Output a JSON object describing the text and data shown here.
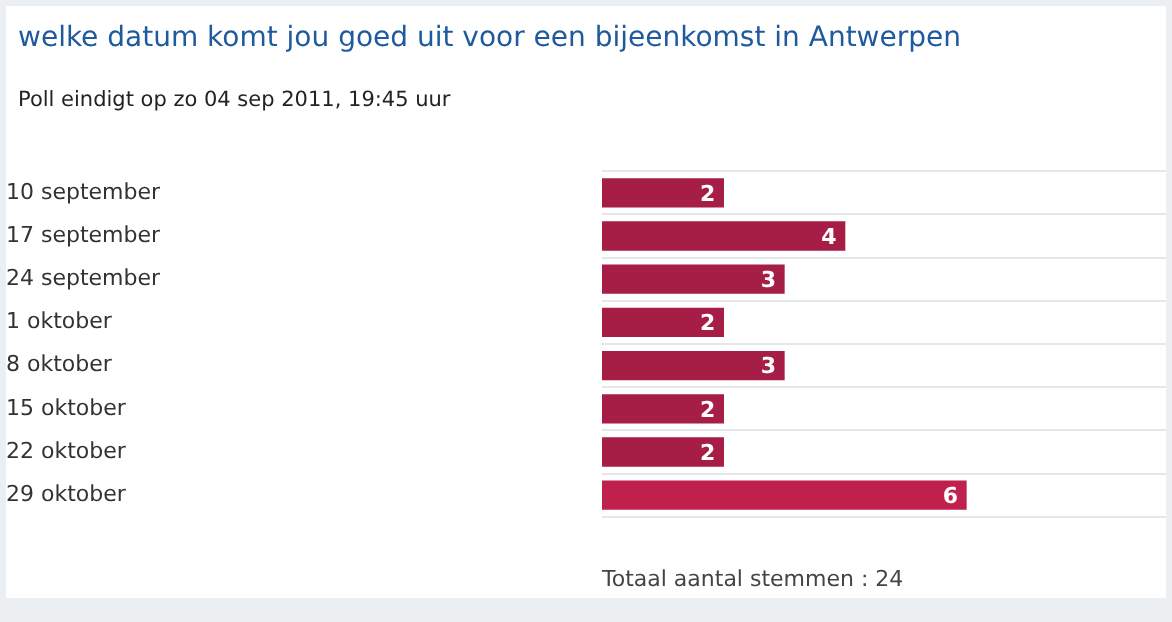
{
  "chart_data": {
    "type": "bar",
    "orientation": "horizontal",
    "title": "welke datum komt jou goed uit voor een bijeenkomst in Antwerpen",
    "subtitle": "Poll eindigt op zo 04 sep 2011, 19:45 uur",
    "categories": [
      "10 september",
      "17 september",
      "24 september",
      "1 oktober",
      "8 oktober",
      "15 oktober",
      "22 oktober",
      "29 oktober"
    ],
    "values": [
      2,
      4,
      3,
      2,
      3,
      2,
      2,
      6
    ],
    "colors": [
      "#a61e45",
      "#a61e45",
      "#a61e45",
      "#a61e45",
      "#a61e45",
      "#a61e45",
      "#a61e45",
      "#c0204c"
    ],
    "data_labels": true,
    "grid": "y",
    "legend": false,
    "tick_labels": "y",
    "annotations": [
      "Totaal aantal stemmen : 24"
    ]
  }
}
